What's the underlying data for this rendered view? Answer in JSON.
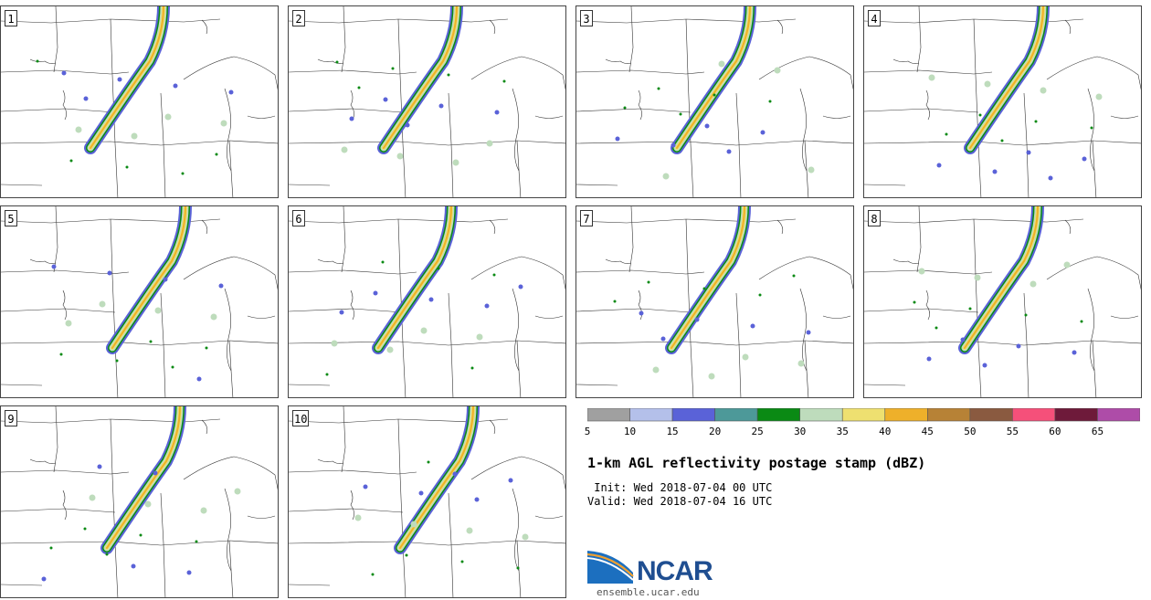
{
  "panels": [
    {
      "label": "1"
    },
    {
      "label": "2"
    },
    {
      "label": "3"
    },
    {
      "label": "4"
    },
    {
      "label": "5"
    },
    {
      "label": "6"
    },
    {
      "label": "7"
    },
    {
      "label": "8"
    },
    {
      "label": "9"
    },
    {
      "label": "10"
    }
  ],
  "colorbar": {
    "ticks": [
      "5",
      "10",
      "15",
      "20",
      "25",
      "30",
      "35",
      "40",
      "45",
      "50",
      "55",
      "60",
      "65"
    ],
    "colors": [
      "#a0a0a0",
      "#b4c0ea",
      "#5a62d8",
      "#4d9999",
      "#0a8a14",
      "#bedcbc",
      "#eee070",
      "#eeb02a",
      "#b78236",
      "#8a5a40",
      "#f5507a",
      "#6e1a3a",
      "#ae4ca8"
    ]
  },
  "title": "1-km AGL reflectivity postage stamp (dBZ)",
  "init": " Init: Wed 2018-07-04 00 UTC",
  "valid": "Valid: Wed 2018-07-04 16 UTC",
  "logo": {
    "name": "NCAR",
    "url": "ensemble.ucar.edu"
  }
}
